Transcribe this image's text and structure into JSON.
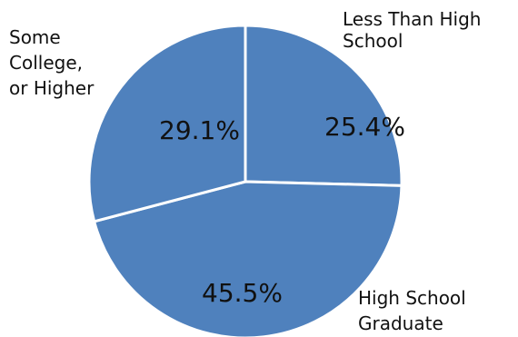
{
  "chart_data": {
    "type": "pie",
    "slice_color": "#4f81bd",
    "edge_color": "#ffffff",
    "slices": [
      {
        "label_lines": [
          "Less Than High",
          "School"
        ],
        "value": 25.4,
        "value_label": "25.4%"
      },
      {
        "label_lines": [
          "High School",
          "Graduate"
        ],
        "value": 45.5,
        "value_label": "45.5%"
      },
      {
        "label_lines": [
          "Some",
          "College,",
          "or Higher"
        ],
        "value": 29.1,
        "value_label": "29.1%"
      }
    ],
    "start_angle_deg": 0,
    "direction": "clockwise",
    "legend": "none"
  }
}
